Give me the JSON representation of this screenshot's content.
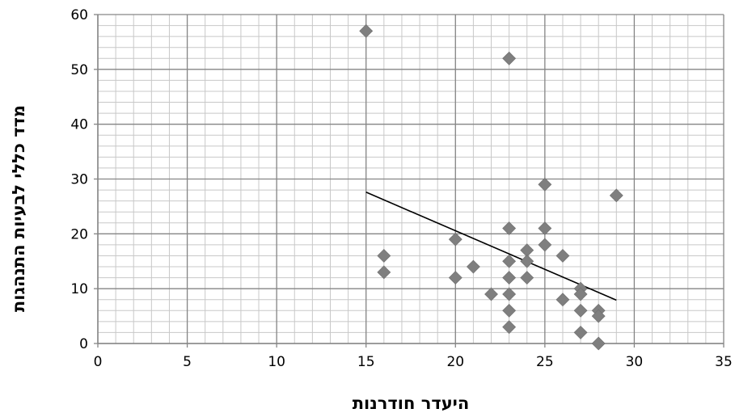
{
  "chart_data": {
    "type": "scatter",
    "title": "",
    "xlabel": "היעדר חודרנות",
    "ylabel": "מדד כללי לבעיות התנהגות",
    "xlim": [
      0,
      35
    ],
    "ylim": [
      0,
      60
    ],
    "x_ticks": [
      0,
      5,
      10,
      15,
      20,
      25,
      30,
      35
    ],
    "y_ticks": [
      0,
      10,
      20,
      30,
      40,
      50,
      60
    ],
    "x_tick_labels": [
      "0",
      "5",
      "10",
      "15",
      "20",
      "25",
      "30",
      "35"
    ],
    "y_tick_labels": [
      "0",
      "10",
      "20",
      "30",
      "40",
      "50",
      "60"
    ],
    "grid": {
      "major": true,
      "minor": true
    },
    "legend": "none",
    "marker": "diamond",
    "colors": {
      "marker": "#7f7f7f",
      "trendline": "#000000",
      "major_grid": "#868686",
      "minor_grid": "#c8c8c8"
    },
    "points": [
      {
        "x": 15,
        "y": 57
      },
      {
        "x": 16,
        "y": 16
      },
      {
        "x": 16,
        "y": 13
      },
      {
        "x": 20,
        "y": 19
      },
      {
        "x": 20,
        "y": 12
      },
      {
        "x": 21,
        "y": 14
      },
      {
        "x": 22,
        "y": 9
      },
      {
        "x": 23,
        "y": 52
      },
      {
        "x": 23,
        "y": 21
      },
      {
        "x": 23,
        "y": 15
      },
      {
        "x": 23,
        "y": 12
      },
      {
        "x": 23,
        "y": 9
      },
      {
        "x": 23,
        "y": 6
      },
      {
        "x": 23,
        "y": 3
      },
      {
        "x": 24,
        "y": 17
      },
      {
        "x": 24,
        "y": 15
      },
      {
        "x": 24,
        "y": 12
      },
      {
        "x": 25,
        "y": 29
      },
      {
        "x": 25,
        "y": 21
      },
      {
        "x": 25,
        "y": 18
      },
      {
        "x": 26,
        "y": 16
      },
      {
        "x": 26,
        "y": 8
      },
      {
        "x": 27,
        "y": 10
      },
      {
        "x": 27,
        "y": 9
      },
      {
        "x": 27,
        "y": 6
      },
      {
        "x": 27,
        "y": 2
      },
      {
        "x": 28,
        "y": 6
      },
      {
        "x": 28,
        "y": 5
      },
      {
        "x": 28,
        "y": 0
      },
      {
        "x": 29,
        "y": 27
      }
    ],
    "trendline": {
      "type": "linear",
      "x": [
        15,
        29
      ],
      "y": [
        27.6,
        7.9
      ]
    }
  }
}
